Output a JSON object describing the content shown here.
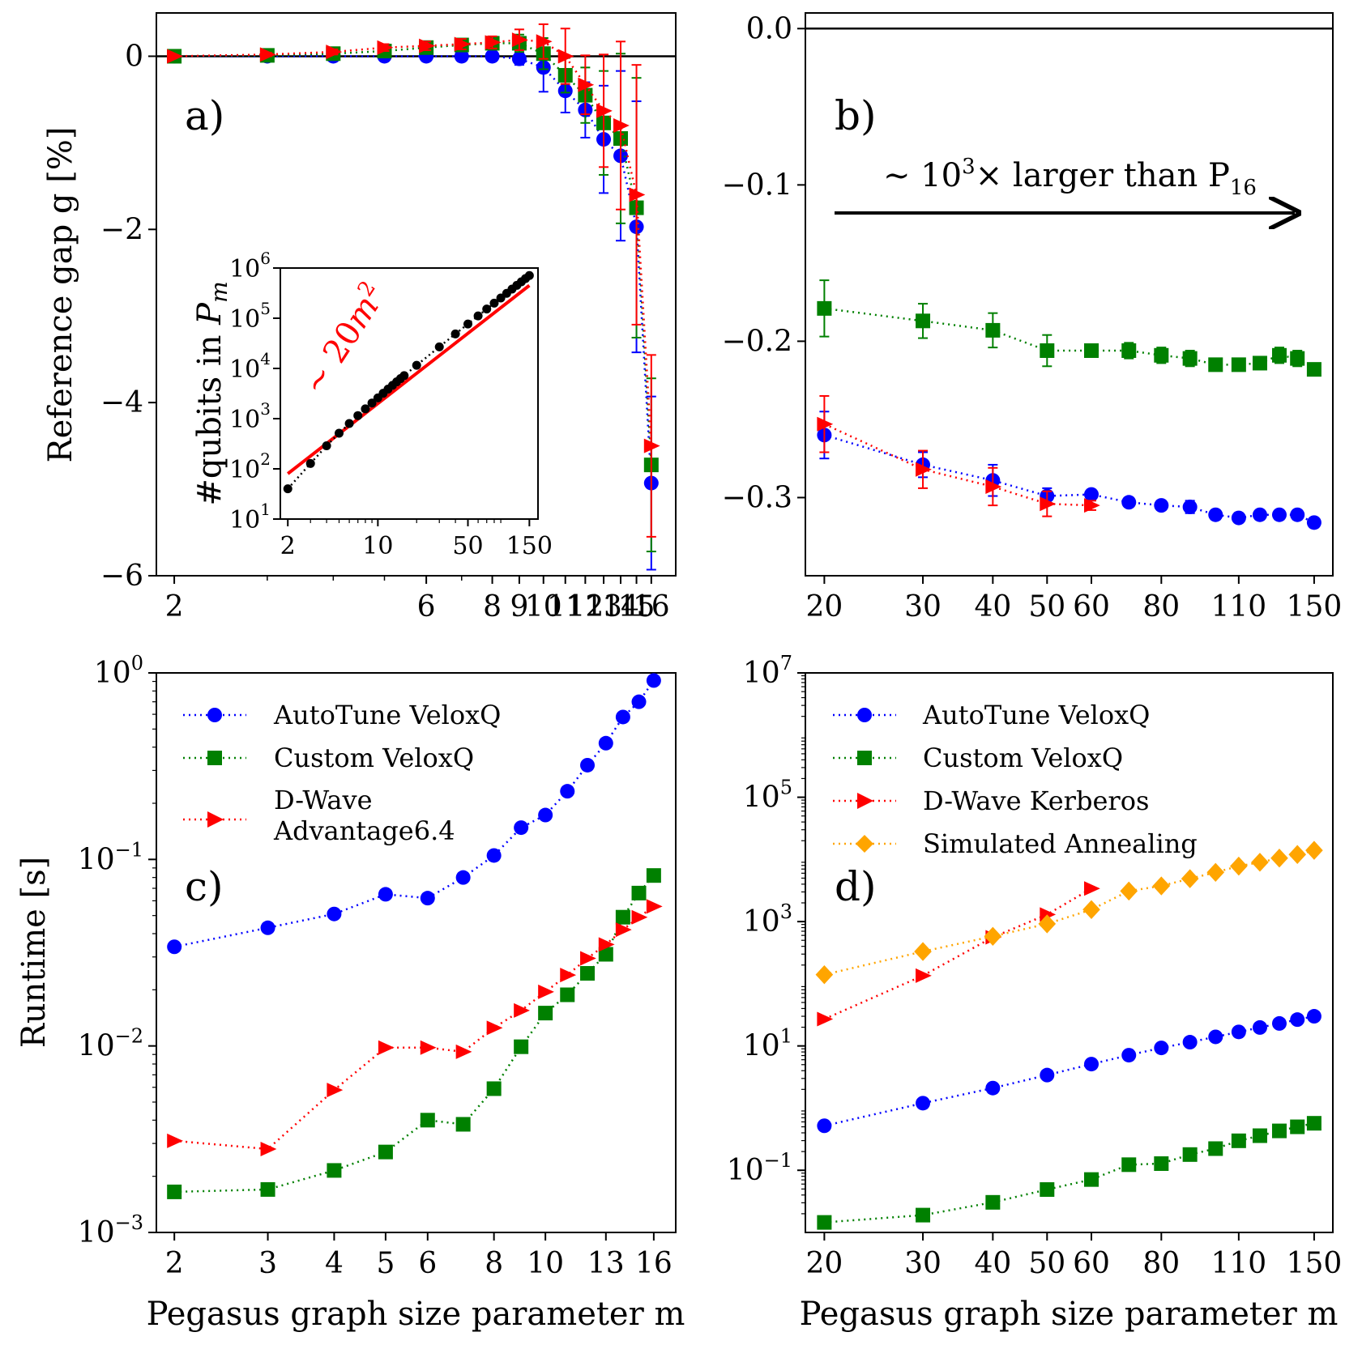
{
  "colors": {
    "autotune": "#0000ff",
    "custom": "#008000",
    "dwave": "#ff0000",
    "sa": "#ffa500",
    "fit": "#ff0000",
    "qubits": "#000000"
  },
  "chart_data": [
    {
      "id": "a",
      "type": "line",
      "panel_label": "a)",
      "ylabel": "Reference gap g [%]",
      "xlabel": "",
      "xscale": "log",
      "xlim": [
        1.85,
        17.8
      ],
      "ylim": [
        -6,
        0.5
      ],
      "xticks": [
        2,
        6,
        8,
        9,
        10,
        11,
        12,
        13,
        14,
        15,
        16
      ],
      "xtick_labels": [
        "2",
        "6",
        "8",
        "9",
        "10",
        "11",
        "12",
        "13",
        "14",
        "15",
        "16"
      ],
      "minor_xticks": [
        3,
        4,
        5,
        7
      ],
      "yticks": [
        0,
        -2,
        -4,
        -6
      ],
      "ytick_labels": [
        "0",
        "−2",
        "−4",
        "−6"
      ],
      "hline": 0,
      "series": [
        {
          "name": "AutoTune VeloxQ",
          "marker": "circle",
          "color": "#0000ff",
          "x": [
            2,
            3,
            4,
            5,
            6,
            7,
            8,
            9,
            10,
            11,
            12,
            13,
            14,
            15,
            16
          ],
          "y": [
            0,
            0,
            0,
            0,
            0,
            0,
            0,
            -0.03,
            -0.13,
            -0.4,
            -0.62,
            -0.96,
            -1.15,
            -1.97,
            -4.93
          ],
          "err": [
            0.01,
            0.01,
            0.01,
            0.01,
            0.02,
            0.02,
            0.03,
            0.07,
            0.28,
            0.25,
            0.32,
            0.62,
            0.98,
            1.45,
            1.0
          ]
        },
        {
          "name": "Custom VeloxQ",
          "marker": "square",
          "color": "#008000",
          "x": [
            2,
            3,
            4,
            5,
            6,
            7,
            8,
            9,
            10,
            11,
            12,
            13,
            14,
            15,
            16
          ],
          "y": [
            0,
            0.01,
            0.03,
            0.06,
            0.1,
            0.13,
            0.15,
            0.15,
            0.03,
            -0.22,
            -0.45,
            -0.77,
            -0.95,
            -1.75,
            -4.72
          ],
          "err": [
            0.01,
            0.01,
            0.02,
            0.03,
            0.04,
            0.05,
            0.06,
            0.1,
            0.18,
            0.2,
            0.32,
            0.6,
            0.98,
            1.5,
            1.0
          ]
        },
        {
          "name": "D-Wave Advantage6.4",
          "marker": "triangle",
          "color": "#ff0000",
          "x": [
            2,
            3,
            4,
            5,
            6,
            7,
            8,
            9,
            10,
            11,
            12,
            13,
            14,
            15,
            16
          ],
          "y": [
            0,
            0.02,
            0.05,
            0.1,
            0.12,
            0.14,
            0.16,
            0.19,
            0.17,
            0,
            -0.33,
            -0.63,
            -0.8,
            -1.6,
            -4.5
          ],
          "err": [
            0.01,
            0.02,
            0.03,
            0.04,
            0.05,
            0.06,
            0.07,
            0.12,
            0.2,
            0.32,
            0.34,
            0.65,
            0.97,
            1.5,
            1.05
          ]
        }
      ],
      "inset": {
        "type": "line",
        "ylabel": "#qubits in Pm",
        "xscale": "log",
        "yscale": "log",
        "xlim": [
          1.75,
          175
        ],
        "ylim": [
          10,
          1000000
        ],
        "xticks": [
          2,
          10,
          50,
          150
        ],
        "xtick_labels": [
          "2",
          "10",
          "50",
          "150"
        ],
        "yticks": [
          10,
          100,
          1000,
          10000,
          100000,
          1000000
        ],
        "ytick_labels": [
          [
            "10",
            "1"
          ],
          [
            "10",
            "2"
          ],
          [
            "10",
            "3"
          ],
          [
            "10",
            "4"
          ],
          [
            "10",
            "5"
          ],
          [
            "10",
            "6"
          ]
        ],
        "fit_label": [
          "∼ 20",
          "m",
          "2"
        ],
        "fit_coefficient": 20,
        "qubits_x": [
          2,
          3,
          4,
          5,
          6,
          7,
          8,
          9,
          10,
          11,
          12,
          13,
          14,
          15,
          16,
          20,
          30,
          40,
          50,
          60,
          70,
          80,
          90,
          100,
          110,
          120,
          130,
          140,
          150
        ],
        "qubits_y": [
          40,
          128,
          288,
          512,
          800,
          1152,
          1568,
          2048,
          2592,
          3200,
          3872,
          4608,
          5408,
          6272,
          7200,
          11552,
          26912,
          48672,
          76832,
          111392,
          152352,
          199712,
          253472,
          313632,
          380192,
          453152,
          532512,
          618272,
          710432
        ]
      }
    },
    {
      "id": "b",
      "type": "line",
      "panel_label": "b)",
      "xscale": "log",
      "xlim": [
        18.5,
        162
      ],
      "ylim": [
        -0.35,
        0.01
      ],
      "xticks": [
        20,
        30,
        40,
        50,
        60,
        80,
        110,
        150
      ],
      "xtick_labels": [
        "20",
        "30",
        "40",
        "50",
        "60",
        "80",
        "110",
        "150"
      ],
      "yticks": [
        0.0,
        -0.1,
        -0.2,
        -0.3
      ],
      "ytick_labels": [
        "0.0",
        "−0.1",
        "−0.2",
        "−0.3"
      ],
      "hline": 0,
      "arrow_text": [
        "∼ 10",
        "3",
        "× larger than P",
        "16"
      ],
      "series": [
        {
          "name": "Custom VeloxQ",
          "marker": "square",
          "color": "#008000",
          "x": [
            20,
            30,
            40,
            50,
            60,
            70,
            80,
            90,
            100,
            110,
            120,
            130,
            140,
            150
          ],
          "y": [
            -0.179,
            -0.187,
            -0.193,
            -0.206,
            -0.206,
            -0.206,
            -0.209,
            -0.211,
            -0.215,
            -0.215,
            -0.214,
            -0.209,
            -0.211,
            -0.218
          ],
          "err": [
            0.018,
            0.011,
            0.011,
            0.01,
            0.003,
            0.005,
            0.005,
            0.005,
            0.003,
            0.003,
            0.004,
            0.005,
            0.005,
            0.003
          ]
        },
        {
          "name": "AutoTune VeloxQ",
          "marker": "circle",
          "color": "#0000ff",
          "x": [
            20,
            30,
            40,
            50,
            60,
            70,
            80,
            90,
            100,
            110,
            120,
            130,
            140,
            150
          ],
          "y": [
            -0.26,
            -0.279,
            -0.289,
            -0.299,
            -0.298,
            -0.303,
            -0.305,
            -0.306,
            -0.311,
            -0.313,
            -0.311,
            -0.311,
            -0.311,
            -0.316
          ],
          "err": [
            0.015,
            0.008,
            0.01,
            0.005,
            0.003,
            0.003,
            0.003,
            0.004,
            0.003,
            0.003,
            0.003,
            0.003,
            0.003,
            0.003
          ]
        },
        {
          "name": "D-Wave Kerberos",
          "marker": "triangle",
          "color": "#ff0000",
          "x": [
            20,
            30,
            40,
            50,
            60
          ],
          "y": [
            -0.253,
            -0.282,
            -0.293,
            -0.304,
            -0.305
          ],
          "err": [
            0.018,
            0.012,
            0.012,
            0.008,
            0.003
          ]
        }
      ]
    },
    {
      "id": "c",
      "type": "line",
      "panel_label": "c)",
      "ylabel": "Runtime [s]",
      "xlabel": "Pegasus graph size parameter m",
      "xscale": "log",
      "yscale": "log",
      "xlim": [
        1.85,
        17.6
      ],
      "ylim": [
        0.001,
        1
      ],
      "xticks": [
        2,
        3,
        4,
        5,
        6,
        8,
        10,
        13,
        16
      ],
      "xtick_labels": [
        "2",
        "3",
        "4",
        "5",
        "6",
        "8",
        "10",
        "13",
        "16"
      ],
      "yticks": [
        0.001,
        0.01,
        0.1,
        1
      ],
      "ytick_labels": [
        [
          "10",
          "−3"
        ],
        [
          "10",
          "−2"
        ],
        [
          "10",
          "−1"
        ],
        [
          "10",
          "0"
        ]
      ],
      "legend": [
        "AutoTune VeloxQ",
        "Custom VeloxQ",
        "D-Wave",
        "Advantage6.4"
      ],
      "legend_position": "top-left",
      "series": [
        {
          "name": "AutoTune VeloxQ",
          "marker": "circle",
          "color": "#0000ff",
          "x": [
            2,
            3,
            4,
            5,
            6,
            7,
            8,
            9,
            10,
            11,
            12,
            13,
            14,
            15,
            16
          ],
          "y": [
            0.034,
            0.043,
            0.051,
            0.065,
            0.062,
            0.08,
            0.105,
            0.148,
            0.173,
            0.232,
            0.32,
            0.42,
            0.58,
            0.7,
            0.91
          ]
        },
        {
          "name": "Custom VeloxQ",
          "marker": "square",
          "color": "#008000",
          "x": [
            2,
            3,
            4,
            5,
            6,
            7,
            8,
            9,
            10,
            11,
            12,
            13,
            14,
            15,
            16
          ],
          "y": [
            0.00165,
            0.0017,
            0.00215,
            0.0027,
            0.004,
            0.0038,
            0.0059,
            0.0099,
            0.015,
            0.0188,
            0.0245,
            0.031,
            0.049,
            0.066,
            0.082
          ]
        },
        {
          "name": "D-Wave Advantage6.4",
          "marker": "triangle",
          "color": "#ff0000",
          "x": [
            2,
            3,
            4,
            5,
            6,
            7,
            8,
            9,
            10,
            11,
            12,
            13,
            14,
            15,
            16
          ],
          "y": [
            0.0031,
            0.0028,
            0.0058,
            0.0098,
            0.0098,
            0.0093,
            0.0125,
            0.0155,
            0.0195,
            0.024,
            0.0295,
            0.035,
            0.042,
            0.049,
            0.056
          ]
        }
      ]
    },
    {
      "id": "d",
      "type": "line",
      "panel_label": "d)",
      "xlabel": "Pegasus graph size parameter m",
      "xscale": "log",
      "yscale": "log",
      "xlim": [
        18.5,
        162
      ],
      "ylim": [
        0.01,
        10000000
      ],
      "xticks": [
        20,
        30,
        40,
        50,
        60,
        80,
        110,
        150
      ],
      "xtick_labels": [
        "20",
        "30",
        "40",
        "50",
        "60",
        "80",
        "110",
        "150"
      ],
      "yticks": [
        0.1,
        10,
        1000,
        100000,
        10000000
      ],
      "ytick_labels": [
        [
          "10",
          "−1"
        ],
        [
          "10",
          "1"
        ],
        [
          "10",
          "3"
        ],
        [
          "10",
          "5"
        ],
        [
          "10",
          "7"
        ]
      ],
      "legend": [
        "AutoTune VeloxQ",
        "Custom VeloxQ",
        "D-Wave Kerberos",
        "Simulated Annealing"
      ],
      "legend_position": "top-left",
      "series": [
        {
          "name": "AutoTune VeloxQ",
          "marker": "circle",
          "color": "#0000ff",
          "x": [
            20,
            30,
            40,
            50,
            60,
            70,
            80,
            90,
            100,
            110,
            120,
            130,
            140,
            150
          ],
          "y": [
            0.52,
            1.2,
            2.1,
            3.4,
            5.1,
            7.1,
            9.3,
            11.5,
            14.0,
            16.8,
            19.8,
            23.0,
            26.5,
            30.0
          ]
        },
        {
          "name": "Custom VeloxQ",
          "marker": "square",
          "color": "#008000",
          "x": [
            20,
            30,
            40,
            50,
            60,
            70,
            80,
            90,
            100,
            110,
            120,
            130,
            140,
            150
          ],
          "y": [
            0.0145,
            0.019,
            0.0305,
            0.049,
            0.071,
            0.123,
            0.128,
            0.179,
            0.223,
            0.298,
            0.36,
            0.43,
            0.5,
            0.57
          ]
        },
        {
          "name": "D-Wave Kerberos",
          "marker": "triangle",
          "color": "#ff0000",
          "x": [
            20,
            30,
            40,
            50,
            60
          ],
          "y": [
            27,
            135,
            560,
            1300,
            3400
          ]
        },
        {
          "name": "Simulated Annealing",
          "marker": "diamond",
          "color": "#ffa500",
          "x": [
            20,
            30,
            40,
            50,
            60,
            70,
            80,
            90,
            100,
            110,
            120,
            130,
            140,
            150
          ],
          "y": [
            140,
            330,
            580,
            920,
            1560,
            3100,
            3750,
            4900,
            6200,
            7800,
            9000,
            10500,
            12000,
            14000
          ]
        }
      ]
    }
  ]
}
